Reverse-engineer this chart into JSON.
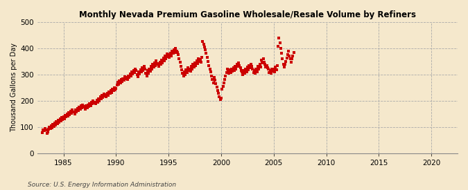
{
  "title": "Monthly Nevada Premium Gasoline Wholesale/Resale Volume by Refiners",
  "ylabel": "Thousand Gallons per Day",
  "source": "Source: U.S. Energy Information Administration",
  "bg_color": "#f5e8cc",
  "plot_bg": "#fdf6e3",
  "dot_color": "#cc0000",
  "xlim": [
    1982.5,
    2022.5
  ],
  "ylim": [
    0,
    500
  ],
  "yticks": [
    0,
    100,
    200,
    300,
    400,
    500
  ],
  "xticks": [
    1985,
    1990,
    1995,
    2000,
    2005,
    2010,
    2015,
    2020
  ],
  "data_points": [
    [
      1983.0,
      78
    ],
    [
      1983.08,
      90
    ],
    [
      1983.17,
      85
    ],
    [
      1983.25,
      95
    ],
    [
      1983.33,
      88
    ],
    [
      1983.42,
      75
    ],
    [
      1983.5,
      82
    ],
    [
      1983.58,
      92
    ],
    [
      1983.67,
      100
    ],
    [
      1983.75,
      95
    ],
    [
      1983.83,
      105
    ],
    [
      1983.92,
      98
    ],
    [
      1984.0,
      110
    ],
    [
      1984.08,
      102
    ],
    [
      1984.17,
      115
    ],
    [
      1984.25,
      108
    ],
    [
      1984.33,
      120
    ],
    [
      1984.42,
      112
    ],
    [
      1984.5,
      125
    ],
    [
      1984.58,
      118
    ],
    [
      1984.67,
      130
    ],
    [
      1984.75,
      122
    ],
    [
      1984.83,
      135
    ],
    [
      1984.92,
      128
    ],
    [
      1985.0,
      140
    ],
    [
      1985.08,
      130
    ],
    [
      1985.17,
      145
    ],
    [
      1985.25,
      138
    ],
    [
      1985.33,
      150
    ],
    [
      1985.42,
      142
    ],
    [
      1985.5,
      155
    ],
    [
      1985.58,
      148
    ],
    [
      1985.67,
      160
    ],
    [
      1985.75,
      152
    ],
    [
      1985.83,
      165
    ],
    [
      1985.92,
      158
    ],
    [
      1986.0,
      158
    ],
    [
      1986.08,
      150
    ],
    [
      1986.17,
      165
    ],
    [
      1986.25,
      158
    ],
    [
      1986.33,
      170
    ],
    [
      1986.42,
      162
    ],
    [
      1986.5,
      175
    ],
    [
      1986.58,
      168
    ],
    [
      1986.67,
      180
    ],
    [
      1986.75,
      172
    ],
    [
      1986.83,
      185
    ],
    [
      1986.92,
      178
    ],
    [
      1987.0,
      175
    ],
    [
      1987.08,
      168
    ],
    [
      1987.17,
      180
    ],
    [
      1987.25,
      173
    ],
    [
      1987.33,
      185
    ],
    [
      1987.42,
      178
    ],
    [
      1987.5,
      190
    ],
    [
      1987.58,
      182
    ],
    [
      1987.67,
      195
    ],
    [
      1987.75,
      188
    ],
    [
      1987.83,
      200
    ],
    [
      1987.92,
      192
    ],
    [
      1988.0,
      195
    ],
    [
      1988.08,
      188
    ],
    [
      1988.17,
      202
    ],
    [
      1988.25,
      195
    ],
    [
      1988.33,
      208
    ],
    [
      1988.42,
      200
    ],
    [
      1988.5,
      215
    ],
    [
      1988.58,
      207
    ],
    [
      1988.67,
      220
    ],
    [
      1988.75,
      212
    ],
    [
      1988.83,
      225
    ],
    [
      1988.92,
      218
    ],
    [
      1989.0,
      222
    ],
    [
      1989.08,
      215
    ],
    [
      1989.17,
      228
    ],
    [
      1989.25,
      220
    ],
    [
      1989.33,
      235
    ],
    [
      1989.42,
      228
    ],
    [
      1989.5,
      240
    ],
    [
      1989.58,
      232
    ],
    [
      1989.67,
      245
    ],
    [
      1989.75,
      238
    ],
    [
      1989.83,
      250
    ],
    [
      1989.92,
      242
    ],
    [
      1990.0,
      248
    ],
    [
      1990.08,
      260
    ],
    [
      1990.17,
      270
    ],
    [
      1990.25,
      262
    ],
    [
      1990.33,
      275
    ],
    [
      1990.42,
      268
    ],
    [
      1990.5,
      280
    ],
    [
      1990.58,
      272
    ],
    [
      1990.67,
      285
    ],
    [
      1990.75,
      278
    ],
    [
      1990.83,
      292
    ],
    [
      1990.92,
      285
    ],
    [
      1991.0,
      290
    ],
    [
      1991.08,
      280
    ],
    [
      1991.17,
      295
    ],
    [
      1991.25,
      288
    ],
    [
      1991.33,
      303
    ],
    [
      1991.42,
      295
    ],
    [
      1991.5,
      310
    ],
    [
      1991.58,
      302
    ],
    [
      1991.67,
      315
    ],
    [
      1991.75,
      307
    ],
    [
      1991.83,
      322
    ],
    [
      1991.92,
      315
    ],
    [
      1992.0,
      300
    ],
    [
      1992.08,
      292
    ],
    [
      1992.17,
      310
    ],
    [
      1992.25,
      302
    ],
    [
      1992.33,
      318
    ],
    [
      1992.42,
      310
    ],
    [
      1992.5,
      325
    ],
    [
      1992.58,
      315
    ],
    [
      1992.67,
      330
    ],
    [
      1992.75,
      322
    ],
    [
      1992.83,
      305
    ],
    [
      1992.92,
      295
    ],
    [
      1993.0,
      315
    ],
    [
      1993.08,
      305
    ],
    [
      1993.17,
      322
    ],
    [
      1993.25,
      312
    ],
    [
      1993.33,
      330
    ],
    [
      1993.42,
      320
    ],
    [
      1993.5,
      338
    ],
    [
      1993.58,
      328
    ],
    [
      1993.67,
      345
    ],
    [
      1993.75,
      335
    ],
    [
      1993.83,
      352
    ],
    [
      1993.92,
      342
    ],
    [
      1994.0,
      340
    ],
    [
      1994.08,
      330
    ],
    [
      1994.17,
      348
    ],
    [
      1994.25,
      338
    ],
    [
      1994.33,
      355
    ],
    [
      1994.42,
      345
    ],
    [
      1994.5,
      362
    ],
    [
      1994.58,
      352
    ],
    [
      1994.67,
      370
    ],
    [
      1994.75,
      360
    ],
    [
      1994.83,
      378
    ],
    [
      1994.92,
      368
    ],
    [
      1995.0,
      375
    ],
    [
      1995.08,
      365
    ],
    [
      1995.17,
      382
    ],
    [
      1995.25,
      372
    ],
    [
      1995.33,
      390
    ],
    [
      1995.42,
      380
    ],
    [
      1995.5,
      395
    ],
    [
      1995.58,
      385
    ],
    [
      1995.67,
      400
    ],
    [
      1995.75,
      390
    ],
    [
      1995.83,
      385
    ],
    [
      1995.92,
      375
    ],
    [
      1996.0,
      360
    ],
    [
      1996.08,
      348
    ],
    [
      1996.17,
      330
    ],
    [
      1996.25,
      318
    ],
    [
      1996.33,
      305
    ],
    [
      1996.42,
      295
    ],
    [
      1996.5,
      310
    ],
    [
      1996.58,
      300
    ],
    [
      1996.67,
      318
    ],
    [
      1996.75,
      308
    ],
    [
      1996.83,
      325
    ],
    [
      1996.92,
      315
    ],
    [
      1997.0,
      322
    ],
    [
      1997.08,
      312
    ],
    [
      1997.17,
      330
    ],
    [
      1997.25,
      320
    ],
    [
      1997.33,
      338
    ],
    [
      1997.42,
      328
    ],
    [
      1997.5,
      345
    ],
    [
      1997.58,
      335
    ],
    [
      1997.67,
      352
    ],
    [
      1997.75,
      342
    ],
    [
      1997.83,
      360
    ],
    [
      1997.92,
      350
    ],
    [
      1998.0,
      358
    ],
    [
      1998.08,
      348
    ],
    [
      1998.17,
      365
    ],
    [
      1998.25,
      425
    ],
    [
      1998.33,
      415
    ],
    [
      1998.42,
      405
    ],
    [
      1998.5,
      395
    ],
    [
      1998.58,
      380
    ],
    [
      1998.67,
      365
    ],
    [
      1998.75,
      350
    ],
    [
      1998.83,
      335
    ],
    [
      1998.92,
      320
    ],
    [
      1999.0,
      310
    ],
    [
      1999.08,
      295
    ],
    [
      1999.17,
      280
    ],
    [
      1999.25,
      268
    ],
    [
      1999.33,
      290
    ],
    [
      1999.42,
      278
    ],
    [
      1999.5,
      265
    ],
    [
      1999.58,
      252
    ],
    [
      1999.67,
      240
    ],
    [
      1999.75,
      228
    ],
    [
      1999.83,
      215
    ],
    [
      1999.92,
      205
    ],
    [
      2000.0,
      210
    ],
    [
      2000.08,
      245
    ],
    [
      2000.17,
      255
    ],
    [
      2000.25,
      268
    ],
    [
      2000.33,
      282
    ],
    [
      2000.42,
      295
    ],
    [
      2000.5,
      308
    ],
    [
      2000.58,
      320
    ],
    [
      2000.67,
      315
    ],
    [
      2000.75,
      305
    ],
    [
      2000.83,
      318
    ],
    [
      2000.92,
      308
    ],
    [
      2001.0,
      322
    ],
    [
      2001.08,
      312
    ],
    [
      2001.17,
      325
    ],
    [
      2001.25,
      315
    ],
    [
      2001.33,
      330
    ],
    [
      2001.42,
      320
    ],
    [
      2001.5,
      340
    ],
    [
      2001.58,
      330
    ],
    [
      2001.67,
      345
    ],
    [
      2001.75,
      335
    ],
    [
      2001.83,
      325
    ],
    [
      2001.92,
      315
    ],
    [
      2002.0,
      310
    ],
    [
      2002.08,
      300
    ],
    [
      2002.17,
      315
    ],
    [
      2002.25,
      305
    ],
    [
      2002.33,
      320
    ],
    [
      2002.42,
      310
    ],
    [
      2002.5,
      328
    ],
    [
      2002.58,
      318
    ],
    [
      2002.67,
      335
    ],
    [
      2002.75,
      325
    ],
    [
      2002.83,
      340
    ],
    [
      2002.92,
      330
    ],
    [
      2003.0,
      320
    ],
    [
      2003.08,
      308
    ],
    [
      2003.17,
      315
    ],
    [
      2003.25,
      305
    ],
    [
      2003.33,
      320
    ],
    [
      2003.42,
      310
    ],
    [
      2003.5,
      330
    ],
    [
      2003.58,
      320
    ],
    [
      2003.67,
      340
    ],
    [
      2003.75,
      328
    ],
    [
      2003.83,
      355
    ],
    [
      2003.92,
      345
    ],
    [
      2004.0,
      360
    ],
    [
      2004.08,
      348
    ],
    [
      2004.17,
      340
    ],
    [
      2004.25,
      328
    ],
    [
      2004.33,
      335
    ],
    [
      2004.42,
      325
    ],
    [
      2004.5,
      320
    ],
    [
      2004.58,
      308
    ],
    [
      2004.67,
      315
    ],
    [
      2004.75,
      305
    ],
    [
      2004.83,
      322
    ],
    [
      2004.92,
      312
    ],
    [
      2005.0,
      320
    ],
    [
      2005.08,
      310
    ],
    [
      2005.17,
      328
    ],
    [
      2005.25,
      318
    ],
    [
      2005.33,
      335
    ],
    [
      2005.42,
      408
    ],
    [
      2005.5,
      440
    ],
    [
      2005.58,
      420
    ],
    [
      2005.67,
      400
    ],
    [
      2005.75,
      380
    ],
    [
      2005.83,
      360
    ],
    [
      2005.92,
      340
    ],
    [
      2006.0,
      328
    ],
    [
      2006.08,
      338
    ],
    [
      2006.17,
      350
    ],
    [
      2006.25,
      362
    ],
    [
      2006.33,
      375
    ],
    [
      2006.42,
      388
    ],
    [
      2006.5,
      372
    ],
    [
      2006.58,
      360
    ],
    [
      2006.67,
      348
    ],
    [
      2006.75,
      360
    ],
    [
      2006.83,
      372
    ],
    [
      2006.92,
      385
    ]
  ]
}
